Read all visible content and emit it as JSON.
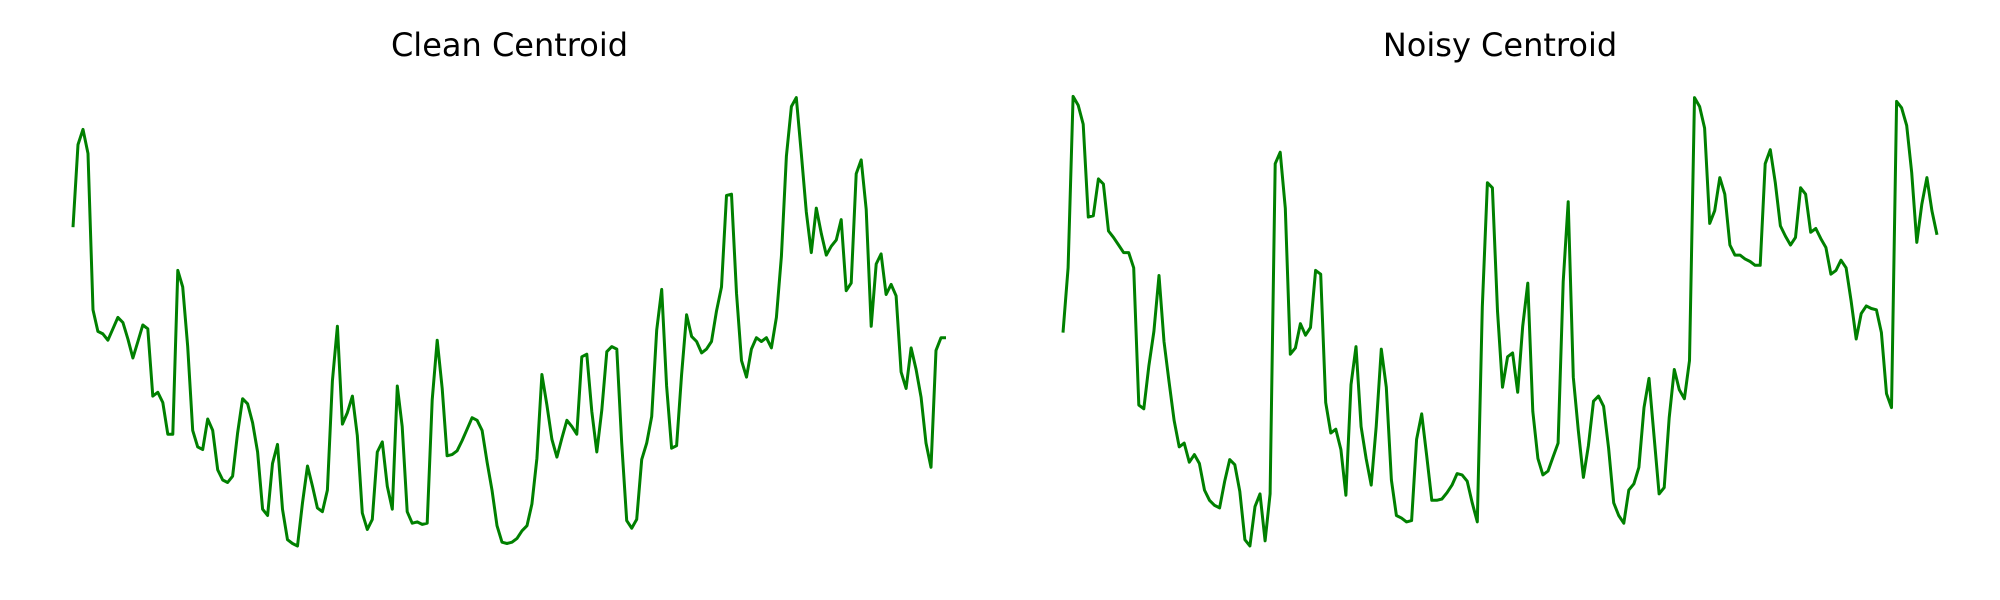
{
  "chart_data": [
    {
      "type": "line",
      "title": "Clean Centroid",
      "color": "#008000",
      "ylim": [
        0,
        370
      ],
      "values": [
        262,
        327,
        339,
        320,
        197,
        180,
        178,
        173,
        182,
        191,
        187,
        174,
        159,
        172,
        185,
        182,
        129,
        132,
        124,
        99,
        99,
        228,
        215,
        168,
        102,
        89,
        87,
        111,
        102,
        71,
        63,
        61,
        66,
        100,
        127,
        123,
        108,
        85,
        40,
        35,
        76,
        91,
        40,
        16,
        13,
        11,
        45,
        74,
        58,
        41,
        38,
        55,
        141,
        184,
        107,
        116,
        129,
        98,
        37,
        24,
        32,
        85,
        93,
        58,
        40,
        137,
        105,
        38,
        29,
        30,
        28,
        29,
        126,
        173,
        135,
        82,
        83,
        86,
        94,
        103,
        112,
        110,
        102,
        77,
        55,
        27,
        14,
        13,
        14,
        17,
        23,
        27,
        44,
        80,
        146,
        122,
        95,
        81,
        96,
        110,
        105,
        99,
        160,
        162,
        117,
        85,
        118,
        164,
        168,
        166,
        92,
        31,
        25,
        32,
        79,
        92,
        113,
        181,
        213,
        137,
        88,
        90,
        146,
        193,
        176,
        172,
        163,
        166,
        172,
        196,
        215,
        287,
        288,
        210,
        157,
        144,
        166,
        175,
        172,
        175,
        167,
        191,
        239,
        318,
        357,
        364,
        320,
        274,
        242,
        277,
        257,
        240,
        247,
        252,
        268,
        212,
        218,
        304,
        315,
        276,
        184,
        233,
        241,
        209,
        217,
        208,
        148,
        135,
        167,
        150,
        128,
        92,
        73,
        165,
        175,
        175
      ]
    },
    {
      "type": "line",
      "title": "Noisy Centroid",
      "color": "#008000",
      "ylim": [
        0,
        370
      ],
      "values": [
        179,
        230,
        365,
        358,
        343,
        270,
        271,
        300,
        296,
        259,
        254,
        248,
        242,
        242,
        230,
        122,
        119,
        153,
        180,
        224,
        172,
        140,
        110,
        89,
        92,
        77,
        83,
        76,
        55,
        47,
        43,
        41,
        62,
        79,
        75,
        54,
        16,
        11,
        42,
        52,
        15,
        52,
        312,
        321,
        277,
        162,
        167,
        186,
        177,
        183,
        228,
        225,
        124,
        100,
        103,
        87,
        51,
        138,
        168,
        105,
        80,
        59,
        105,
        166,
        136,
        63,
        35,
        33,
        30,
        31,
        95,
        115,
        82,
        47,
        47,
        48,
        53,
        59,
        68,
        67,
        62,
        45,
        30,
        199,
        297,
        293,
        196,
        136,
        160,
        163,
        132,
        184,
        218,
        117,
        80,
        67,
        70,
        81,
        92,
        219,
        282,
        144,
        102,
        65,
        90,
        125,
        129,
        121,
        88,
        45,
        35,
        29,
        55,
        60,
        73,
        120,
        143,
        97,
        52,
        57,
        112,
        150,
        134,
        127,
        157,
        364,
        357,
        340,
        265,
        275,
        301,
        288,
        248,
        240,
        240,
        237,
        235,
        232,
        232,
        312,
        323,
        297,
        263,
        255,
        248,
        254,
        293,
        288,
        258,
        261,
        253,
        246,
        225,
        228,
        236,
        230,
        204,
        174,
        194,
        200,
        198,
        197,
        179,
        131,
        120,
        361,
        356,
        342,
        305,
        250,
        280,
        301,
        275,
        256
      ]
    }
  ]
}
